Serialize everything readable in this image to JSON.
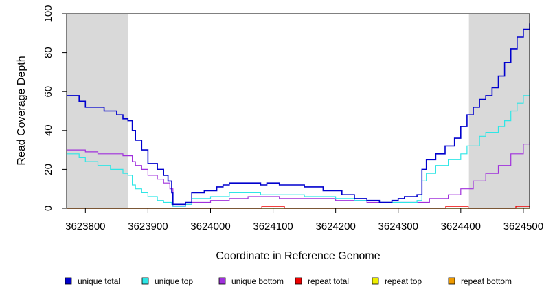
{
  "chart_data": {
    "type": "line",
    "xlabel": "Coordinate in Reference Genome",
    "ylabel": "Read Coverage Depth",
    "xlim": [
      3623770,
      3624510
    ],
    "ylim": [
      0,
      100
    ],
    "x_ticks": [
      "3623800",
      "3623900",
      "3624000",
      "3624100",
      "3624200",
      "3624300",
      "3624400",
      "3624500"
    ],
    "y_ticks": [
      "0",
      "20",
      "40",
      "60",
      "80",
      "100"
    ],
    "shaded_regions": [
      [
        3623770,
        3623868
      ],
      [
        3624413,
        3624510
      ]
    ],
    "legend_position": "bottom",
    "series": [
      {
        "name": "unique total",
        "color": "#0000cd",
        "points": [
          [
            3623770,
            58
          ],
          [
            3623790,
            55
          ],
          [
            3623800,
            52
          ],
          [
            3623830,
            50
          ],
          [
            3623850,
            48
          ],
          [
            3623860,
            46
          ],
          [
            3623868,
            45
          ],
          [
            3623875,
            40
          ],
          [
            3623880,
            35
          ],
          [
            3623890,
            30
          ],
          [
            3623900,
            23
          ],
          [
            3623915,
            20
          ],
          [
            3623925,
            17
          ],
          [
            3623932,
            14
          ],
          [
            3623938,
            8
          ],
          [
            3623940,
            2
          ],
          [
            3623955,
            2
          ],
          [
            3623960,
            3
          ],
          [
            3623970,
            8
          ],
          [
            3623990,
            9
          ],
          [
            3624010,
            11
          ],
          [
            3624020,
            12
          ],
          [
            3624030,
            13
          ],
          [
            3624080,
            12
          ],
          [
            3624090,
            13
          ],
          [
            3624110,
            12
          ],
          [
            3624150,
            11
          ],
          [
            3624180,
            9
          ],
          [
            3624210,
            7
          ],
          [
            3624230,
            5
          ],
          [
            3624250,
            4
          ],
          [
            3624270,
            3
          ],
          [
            3624290,
            4
          ],
          [
            3624300,
            5
          ],
          [
            3624310,
            6
          ],
          [
            3624330,
            7
          ],
          [
            3624338,
            20
          ],
          [
            3624345,
            25
          ],
          [
            3624360,
            28
          ],
          [
            3624375,
            32
          ],
          [
            3624390,
            36
          ],
          [
            3624400,
            42
          ],
          [
            3624410,
            48
          ],
          [
            3624420,
            52
          ],
          [
            3624430,
            56
          ],
          [
            3624440,
            58
          ],
          [
            3624450,
            62
          ],
          [
            3624460,
            68
          ],
          [
            3624470,
            75
          ],
          [
            3624480,
            82
          ],
          [
            3624490,
            88
          ],
          [
            3624500,
            92
          ],
          [
            3624510,
            95
          ]
        ]
      },
      {
        "name": "unique top",
        "color": "#2ee6e6",
        "points": [
          [
            3623770,
            28
          ],
          [
            3623790,
            26
          ],
          [
            3623800,
            24
          ],
          [
            3623820,
            22
          ],
          [
            3623840,
            20
          ],
          [
            3623860,
            18
          ],
          [
            3623868,
            17
          ],
          [
            3623875,
            12
          ],
          [
            3623880,
            10
          ],
          [
            3623890,
            8
          ],
          [
            3623900,
            6
          ],
          [
            3623915,
            4
          ],
          [
            3623925,
            3
          ],
          [
            3623938,
            2
          ],
          [
            3623940,
            1
          ],
          [
            3623955,
            1
          ],
          [
            3623960,
            2
          ],
          [
            3623970,
            5
          ],
          [
            3624000,
            6
          ],
          [
            3624030,
            8
          ],
          [
            3624080,
            7
          ],
          [
            3624110,
            7
          ],
          [
            3624150,
            6
          ],
          [
            3624200,
            5
          ],
          [
            3624230,
            4
          ],
          [
            3624270,
            3
          ],
          [
            3624300,
            3
          ],
          [
            3624330,
            4
          ],
          [
            3624338,
            14
          ],
          [
            3624345,
            18
          ],
          [
            3624360,
            22
          ],
          [
            3624380,
            25
          ],
          [
            3624400,
            28
          ],
          [
            3624410,
            32
          ],
          [
            3624430,
            37
          ],
          [
            3624440,
            39
          ],
          [
            3624460,
            42
          ],
          [
            3624470,
            45
          ],
          [
            3624480,
            50
          ],
          [
            3624490,
            54
          ],
          [
            3624500,
            58
          ],
          [
            3624510,
            61
          ]
        ]
      },
      {
        "name": "unique bottom",
        "color": "#a030dc",
        "points": [
          [
            3623770,
            30
          ],
          [
            3623800,
            29
          ],
          [
            3623820,
            28
          ],
          [
            3623850,
            28
          ],
          [
            3623860,
            27
          ],
          [
            3623868,
            27
          ],
          [
            3623875,
            24
          ],
          [
            3623880,
            22
          ],
          [
            3623890,
            20
          ],
          [
            3623900,
            17
          ],
          [
            3623915,
            15
          ],
          [
            3623925,
            13
          ],
          [
            3623935,
            10
          ],
          [
            3623940,
            1
          ],
          [
            3623955,
            1
          ],
          [
            3623960,
            2
          ],
          [
            3623970,
            3
          ],
          [
            3624000,
            4
          ],
          [
            3624030,
            5
          ],
          [
            3624060,
            6
          ],
          [
            3624110,
            5
          ],
          [
            3624150,
            5
          ],
          [
            3624200,
            4
          ],
          [
            3624250,
            3
          ],
          [
            3624300,
            3
          ],
          [
            3624330,
            3
          ],
          [
            3624350,
            5
          ],
          [
            3624380,
            7
          ],
          [
            3624400,
            10
          ],
          [
            3624420,
            14
          ],
          [
            3624440,
            18
          ],
          [
            3624460,
            22
          ],
          [
            3624480,
            28
          ],
          [
            3624500,
            33
          ],
          [
            3624510,
            34
          ]
        ]
      },
      {
        "name": "repeat total",
        "color": "#ee0000",
        "points": [
          [
            3623770,
            0
          ],
          [
            3624082,
            0
          ],
          [
            3624082,
            1
          ],
          [
            3624118,
            1
          ],
          [
            3624118,
            0
          ],
          [
            3624376,
            0
          ],
          [
            3624376,
            1
          ],
          [
            3624412,
            1
          ],
          [
            3624412,
            0
          ],
          [
            3624488,
            0
          ],
          [
            3624488,
            1
          ],
          [
            3624510,
            1
          ]
        ]
      },
      {
        "name": "repeat top",
        "color": "#eeee00",
        "points": [
          [
            3623770,
            0
          ],
          [
            3624510,
            0
          ]
        ]
      },
      {
        "name": "repeat bottom",
        "color": "#ee9a00",
        "points": [
          [
            3623770,
            0
          ],
          [
            3624510,
            0
          ]
        ]
      }
    ]
  }
}
